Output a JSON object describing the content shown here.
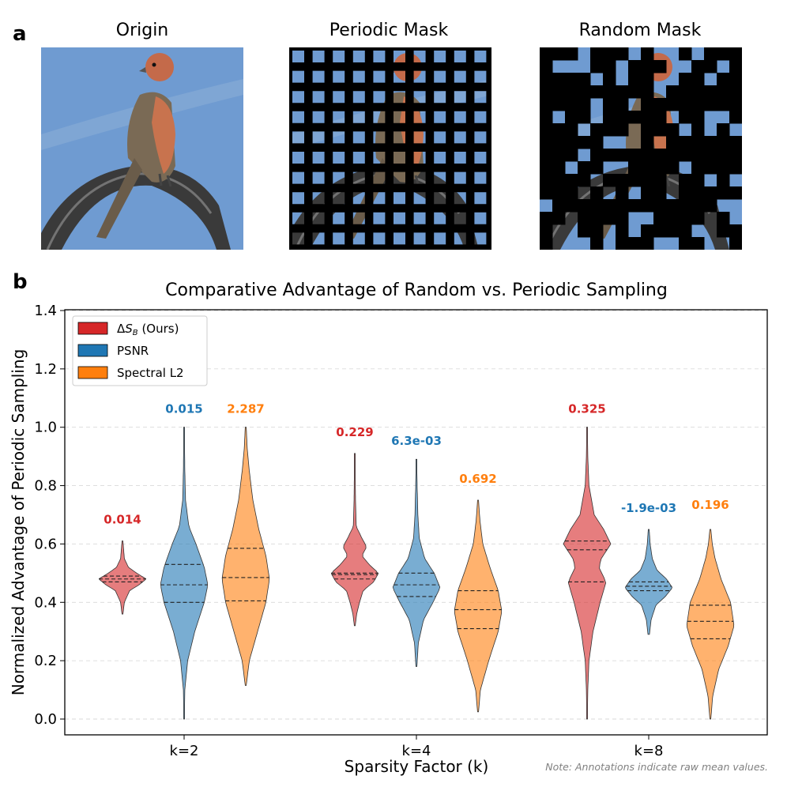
{
  "panel_a": {
    "label": "a",
    "images": [
      {
        "title": "Origin"
      },
      {
        "title": "Periodic Mask"
      },
      {
        "title": "Random Mask"
      }
    ]
  },
  "panel_b": {
    "label": "b"
  },
  "colors": {
    "sky": "#6f9bd1",
    "bird_body": "#7a6a55",
    "bird_breast": "#c8734e",
    "perch": "#3a3a3a",
    "mask": "#000000",
    "delta_sb": "#d62728",
    "psnr": "#1f77b4",
    "spectral": "#ff7f0e"
  },
  "chart_data": {
    "type": "violin",
    "title": "Comparative Advantage of Random vs. Periodic Sampling",
    "xlabel": "Sparsity Factor (k)",
    "ylabel": "Normalized Advantage of Periodic Sampling",
    "ylim": [
      0.0,
      1.4
    ],
    "yticks": [
      "0.0",
      "0.2",
      "0.4",
      "0.6",
      "0.8",
      "1.0",
      "1.2",
      "1.4"
    ],
    "grid": "horizontal dashed",
    "legend_position": "top-left",
    "categories": [
      "k=2",
      "k=4",
      "k=8"
    ],
    "note": "Note: Annotations indicate raw mean values.",
    "series": [
      {
        "name": "ΔS_B (Ours)",
        "color": "#d62728",
        "violins": [
          {
            "min": 0.36,
            "max": 0.61,
            "q1": 0.47,
            "median": 0.48,
            "q3": 0.49,
            "annotation": "0.014",
            "profile": [
              [
                0.36,
                0.02
              ],
              [
                0.4,
                0.08
              ],
              [
                0.44,
                0.3
              ],
              [
                0.46,
                0.7
              ],
              [
                0.48,
                1.0
              ],
              [
                0.5,
                0.6
              ],
              [
                0.52,
                0.25
              ],
              [
                0.55,
                0.08
              ],
              [
                0.61,
                0.02
              ]
            ]
          },
          {
            "min": 0.32,
            "max": 0.91,
            "q1": 0.48,
            "median": 0.495,
            "q3": 0.5,
            "annotation": "0.229",
            "profile": [
              [
                0.32,
                0.02
              ],
              [
                0.36,
                0.08
              ],
              [
                0.4,
                0.2
              ],
              [
                0.44,
                0.35
              ],
              [
                0.47,
                0.8
              ],
              [
                0.5,
                1.0
              ],
              [
                0.53,
                0.6
              ],
              [
                0.56,
                0.3
              ],
              [
                0.59,
                0.5
              ],
              [
                0.62,
                0.3
              ],
              [
                0.66,
                0.06
              ],
              [
                0.75,
                0.03
              ],
              [
                0.91,
                0.01
              ]
            ]
          },
          {
            "min": 0.0,
            "max": 1.0,
            "q1": 0.47,
            "median": 0.58,
            "q3": 0.61,
            "annotation": "0.325",
            "profile": [
              [
                0.0,
                0.01
              ],
              [
                0.1,
                0.03
              ],
              [
                0.2,
                0.08
              ],
              [
                0.3,
                0.25
              ],
              [
                0.4,
                0.55
              ],
              [
                0.47,
                0.8
              ],
              [
                0.52,
                0.5
              ],
              [
                0.55,
                0.6
              ],
              [
                0.6,
                1.0
              ],
              [
                0.65,
                0.7
              ],
              [
                0.7,
                0.3
              ],
              [
                0.8,
                0.08
              ],
              [
                0.9,
                0.03
              ],
              [
                1.0,
                0.01
              ]
            ]
          }
        ]
      },
      {
        "name": "PSNR",
        "color": "#1f77b4",
        "violins": [
          {
            "min": 0.0,
            "max": 1.0,
            "q1": 0.4,
            "median": 0.46,
            "q3": 0.53,
            "annotation": "0.015",
            "profile": [
              [
                0.0,
                0.01
              ],
              [
                0.1,
                0.03
              ],
              [
                0.2,
                0.15
              ],
              [
                0.3,
                0.45
              ],
              [
                0.4,
                0.85
              ],
              [
                0.46,
                1.0
              ],
              [
                0.52,
                0.85
              ],
              [
                0.6,
                0.5
              ],
              [
                0.66,
                0.2
              ],
              [
                0.75,
                0.06
              ],
              [
                0.85,
                0.03
              ],
              [
                1.0,
                0.01
              ]
            ]
          },
          {
            "min": 0.18,
            "max": 0.89,
            "q1": 0.42,
            "median": 0.46,
            "q3": 0.5,
            "annotation": "6.3e-03",
            "profile": [
              [
                0.18,
                0.02
              ],
              [
                0.26,
                0.08
              ],
              [
                0.34,
                0.3
              ],
              [
                0.4,
                0.7
              ],
              [
                0.45,
                1.0
              ],
              [
                0.5,
                0.75
              ],
              [
                0.55,
                0.35
              ],
              [
                0.62,
                0.12
              ],
              [
                0.7,
                0.06
              ],
              [
                0.8,
                0.03
              ],
              [
                0.89,
                0.01
              ]
            ]
          },
          {
            "min": 0.29,
            "max": 0.65,
            "q1": 0.44,
            "median": 0.455,
            "q3": 0.47,
            "annotation": "-1.9e-03",
            "profile": [
              [
                0.29,
                0.03
              ],
              [
                0.34,
                0.1
              ],
              [
                0.39,
                0.3
              ],
              [
                0.42,
                0.7
              ],
              [
                0.45,
                1.0
              ],
              [
                0.48,
                0.75
              ],
              [
                0.51,
                0.35
              ],
              [
                0.55,
                0.15
              ],
              [
                0.6,
                0.06
              ],
              [
                0.65,
                0.02
              ]
            ]
          }
        ]
      },
      {
        "name": "Spectral L2",
        "color": "#ff7f0e",
        "violins": [
          {
            "min": 0.115,
            "max": 1.0,
            "q1": 0.405,
            "median": 0.485,
            "q3": 0.585,
            "annotation": "2.287",
            "profile": [
              [
                0.115,
                0.02
              ],
              [
                0.2,
                0.15
              ],
              [
                0.3,
                0.5
              ],
              [
                0.4,
                0.85
              ],
              [
                0.48,
                1.0
              ],
              [
                0.56,
                0.85
              ],
              [
                0.65,
                0.55
              ],
              [
                0.75,
                0.3
              ],
              [
                0.85,
                0.15
              ],
              [
                0.93,
                0.06
              ],
              [
                1.0,
                0.02
              ]
            ]
          },
          {
            "min": 0.025,
            "max": 0.75,
            "q1": 0.31,
            "median": 0.375,
            "q3": 0.44,
            "annotation": "0.692",
            "profile": [
              [
                0.025,
                0.02
              ],
              [
                0.1,
                0.1
              ],
              [
                0.2,
                0.45
              ],
              [
                0.3,
                0.85
              ],
              [
                0.37,
                1.0
              ],
              [
                0.44,
                0.85
              ],
              [
                0.52,
                0.5
              ],
              [
                0.6,
                0.2
              ],
              [
                0.68,
                0.08
              ],
              [
                0.75,
                0.02
              ]
            ]
          },
          {
            "min": 0.0,
            "max": 0.65,
            "q1": 0.275,
            "median": 0.335,
            "q3": 0.39,
            "annotation": "0.196",
            "profile": [
              [
                0.0,
                0.02
              ],
              [
                0.08,
                0.1
              ],
              [
                0.17,
                0.35
              ],
              [
                0.25,
                0.75
              ],
              [
                0.32,
                1.0
              ],
              [
                0.4,
                0.85
              ],
              [
                0.48,
                0.45
              ],
              [
                0.55,
                0.2
              ],
              [
                0.6,
                0.08
              ],
              [
                0.65,
                0.02
              ]
            ]
          }
        ]
      }
    ]
  }
}
